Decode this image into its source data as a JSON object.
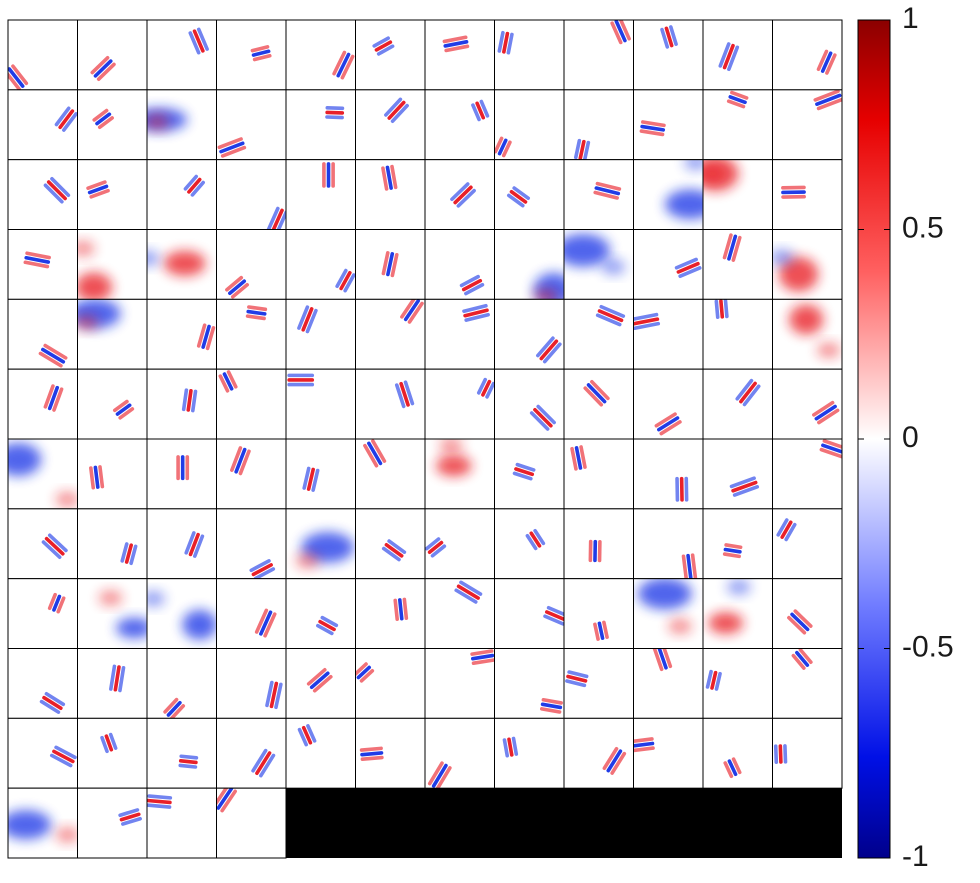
{
  "chart_data": {
    "type": "heatmap",
    "title": "",
    "xlabel": "",
    "ylabel": "",
    "grid": {
      "rows": 12,
      "cols": 12,
      "filled_tiles": 136,
      "empty_tiles": 8,
      "empty_fill": "#000000"
    },
    "colorbar": {
      "range": [
        -1,
        1
      ],
      "ticks": [
        1,
        0.5,
        0,
        -0.5,
        -1
      ],
      "tick_labels": [
        "1",
        "0.5",
        "0",
        "-0.5",
        "-1"
      ],
      "colormap": "blue-white-red",
      "colors": {
        "min": "#00008b",
        "low": "#1e3cff",
        "mid": "#ffffff",
        "high": "#ff1e1e",
        "max": "#8b0000"
      }
    },
    "tile_border_color": "#000000"
  }
}
